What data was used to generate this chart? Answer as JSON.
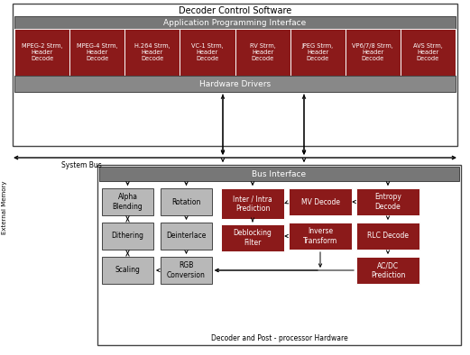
{
  "fig_w": 5.21,
  "fig_h": 3.94,
  "dpi": 100,
  "white": "#ffffff",
  "black": "#000000",
  "dark_gray": "#777777",
  "medium_gray": "#888888",
  "light_gray": "#b8b8b8",
  "red_dark": "#8b1a1a",
  "border": "#444444",
  "codec_labels": [
    "MPEG-2 Strm,\nHeader\nDecode",
    "MPEG-4 Strm,\nHeader\nDecode",
    "H.264 Strm,\nHeader\nDecode",
    "VC-1 Strm,\nHeader\nDecode",
    "RV Strm,\nHeader\nDecode",
    "JPEG Strm,\nHeader\nDecode",
    "VP6/7/8 Strm,\nHeader\nDecode",
    "AVS Strm,\nHeader\nDecode"
  ]
}
